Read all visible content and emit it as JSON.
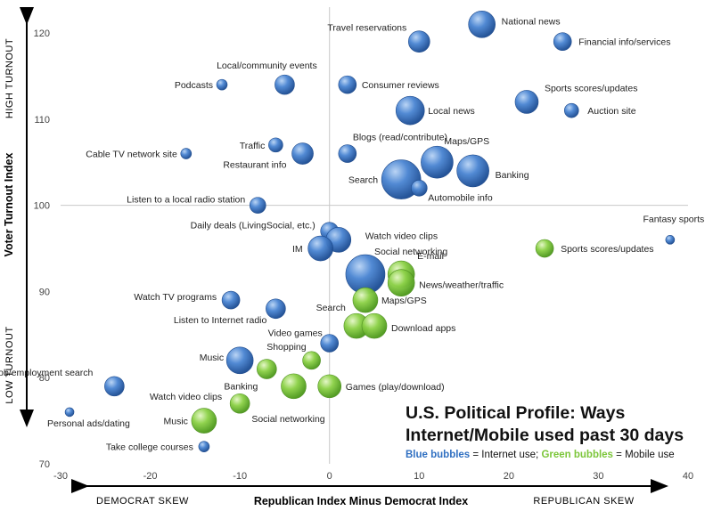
{
  "colors": {
    "internet": "#2f6fc1",
    "mobile": "#7cc63a",
    "axis": "#000000",
    "guide": "#c8c8c8"
  },
  "title": {
    "line1": "U.S. Political Profile: Ways",
    "line2": "Internet/Mobile used past 30 days",
    "legend_blue": "Blue bubbles",
    "legend_blue_rest": " = Internet use; ",
    "legend_green": "Green bubbles",
    "legend_green_rest": " = Mobile use"
  },
  "axes": {
    "x_title": "Republican Index Minus Democrat Index",
    "y_title": "Voter Turnout Index",
    "left_skew": "DEMOCRAT SKEW",
    "right_skew": "REPUBLICAN SKEW",
    "high_turnout": "HIGH TURNOUT",
    "low_turnout": "LOW TURNOUT"
  },
  "chart_data": {
    "type": "scatter",
    "xlabel": "Republican Index Minus Democrat Index",
    "ylabel": "Voter Turnout Index",
    "xlim": [
      -30,
      40
    ],
    "ylim": [
      70,
      123
    ],
    "x_ticks": [
      -30,
      -20,
      -10,
      0,
      10,
      20,
      30,
      40
    ],
    "y_ticks": [
      70,
      80,
      90,
      100,
      110,
      120
    ],
    "series": [
      {
        "name": "Internet use",
        "color": "#2f6fc1",
        "points": [
          {
            "label": "National news",
            "x": 17,
            "y": 121,
            "r": 15
          },
          {
            "label": "Travel reservations",
            "x": 10,
            "y": 119,
            "r": 12
          },
          {
            "label": "Financial info/services",
            "x": 26,
            "y": 119,
            "r": 10
          },
          {
            "label": "Local/community events",
            "x": -5,
            "y": 114,
            "r": 11
          },
          {
            "label": "Podcasts",
            "x": -12,
            "y": 114,
            "r": 6
          },
          {
            "label": "Consumer reviews",
            "x": 2,
            "y": 114,
            "r": 10
          },
          {
            "label": "Sports scores/updates",
            "x": 22,
            "y": 112,
            "r": 13
          },
          {
            "label": "Auction site",
            "x": 27,
            "y": 111,
            "r": 8
          },
          {
            "label": "Local news",
            "x": 9,
            "y": 111,
            "r": 16
          },
          {
            "label": "Traffic",
            "x": -6,
            "y": 107,
            "r": 8
          },
          {
            "label": "Cable TV network site",
            "x": -16,
            "y": 106,
            "r": 6
          },
          {
            "label": "Restaurant info",
            "x": -3,
            "y": 106,
            "r": 12
          },
          {
            "label": "Blogs (read/contribute)",
            "x": 2,
            "y": 106,
            "r": 10
          },
          {
            "label": "Maps/GPS",
            "x": 12,
            "y": 105,
            "r": 18
          },
          {
            "label": "Banking",
            "x": 16,
            "y": 104,
            "r": 18
          },
          {
            "label": "Search",
            "x": 8,
            "y": 103,
            "r": 22
          },
          {
            "label": "Automobile info",
            "x": 10,
            "y": 102,
            "r": 9
          },
          {
            "label": "Listen to a local radio station",
            "x": -8,
            "y": 100,
            "r": 9
          },
          {
            "label": "Daily deals (LivingSocial, etc.)",
            "x": 0,
            "y": 97,
            "r": 10
          },
          {
            "label": "Watch video clips",
            "x": 1,
            "y": 96,
            "r": 14
          },
          {
            "label": "IM",
            "x": -1,
            "y": 95,
            "r": 14
          },
          {
            "label": "Fantasy sports",
            "x": 38,
            "y": 96,
            "r": 5
          },
          {
            "label": "Social networking",
            "x": 4,
            "y": 92,
            "r": 22
          },
          {
            "label": "Watch TV programs",
            "x": -11,
            "y": 89,
            "r": 10
          },
          {
            "label": "Listen to Internet radio",
            "x": -6,
            "y": 88,
            "r": 11
          },
          {
            "label": "Video games",
            "x": 0,
            "y": 84,
            "r": 10
          },
          {
            "label": "Music",
            "x": -10,
            "y": 82,
            "r": 15
          },
          {
            "label": "Job/employment search",
            "x": -24,
            "y": 79,
            "r": 11
          },
          {
            "label": "Personal ads/dating",
            "x": -29,
            "y": 76,
            "r": 5
          },
          {
            "label": "Take college courses",
            "x": -14,
            "y": 72,
            "r": 6
          }
        ]
      },
      {
        "name": "Mobile use",
        "color": "#7cc63a",
        "points": [
          {
            "label": "Sports scores/updates",
            "x": 24,
            "y": 95,
            "r": 10
          },
          {
            "label": "E-mail",
            "x": 8,
            "y": 92,
            "r": 15
          },
          {
            "label": "News/weather/traffic",
            "x": 8,
            "y": 91,
            "r": 15
          },
          {
            "label": "Maps/GPS",
            "x": 4,
            "y": 89,
            "r": 14
          },
          {
            "label": "Search",
            "x": 3,
            "y": 86,
            "r": 14
          },
          {
            "label": "Download apps",
            "x": 5,
            "y": 86,
            "r": 14
          },
          {
            "label": "Shopping",
            "x": -2,
            "y": 82,
            "r": 10
          },
          {
            "label": "Banking",
            "x": -7,
            "y": 81,
            "r": 11
          },
          {
            "label": "Social networking",
            "x": -4,
            "y": 79,
            "r": 14
          },
          {
            "label": "Games (play/download)",
            "x": 0,
            "y": 79,
            "r": 13
          },
          {
            "label": "Watch video clips",
            "x": -10,
            "y": 77,
            "r": 11
          },
          {
            "label": "Music",
            "x": -14,
            "y": 75,
            "r": 14
          }
        ]
      }
    ]
  }
}
